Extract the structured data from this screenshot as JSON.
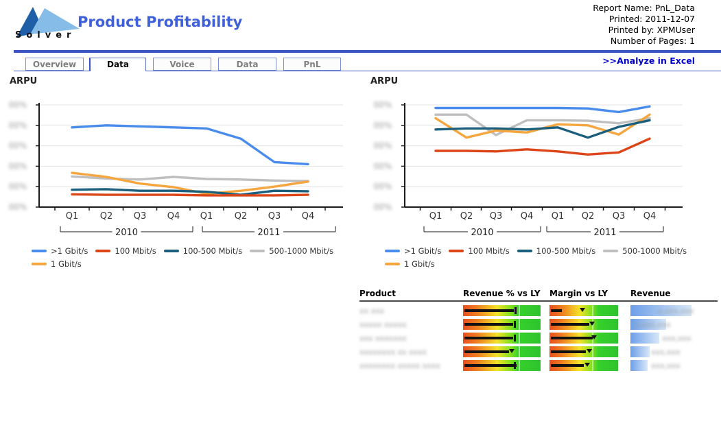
{
  "header": {
    "logo_text": "Solver",
    "title": "Product Profitability",
    "meta": [
      "Report Name: PnL_Data",
      "Printed: 2011-12-07",
      "Printed by: XPMUser",
      "Number of Pages: 1"
    ],
    "analyze_link": ">>Analyze in Excel"
  },
  "tabs": [
    {
      "label": "Overview",
      "active": false
    },
    {
      "label": "Data",
      "active": true
    },
    {
      "label": "Voice",
      "active": false
    },
    {
      "label": "Data",
      "active": false
    },
    {
      "label": "PnL",
      "active": false
    }
  ],
  "colors": {
    "accent_blue": "#3c53c4",
    "title_blue": "#4060d8",
    "link_blue": "#0000cc"
  },
  "chart_data": [
    {
      "type": "line",
      "title": "ARPU",
      "x": [
        "Q1",
        "Q2",
        "Q3",
        "Q4",
        "Q1",
        "Q2",
        "Q3",
        "Q4"
      ],
      "year_groups": [
        {
          "label": "2010",
          "from": 0,
          "to": 3
        },
        {
          "label": "2011",
          "from": 4,
          "to": 7
        }
      ],
      "ylim": [
        0,
        100
      ],
      "grid": true,
      "y_ticks_redacted": {
        "redacted": true,
        "placeholder": "00%",
        "count": 6
      },
      "legend_position": "bottom",
      "series": [
        {
          "name": ">1 Gbit/s",
          "color": "#4a8ceb",
          "values": [
            78,
            80,
            79,
            78,
            77,
            67,
            44,
            42
          ]
        },
        {
          "name": "100 Mbit/s",
          "color": "#dc4517",
          "values": [
            12.5,
            12,
            12,
            12,
            11.5,
            11.5,
            11.5,
            12
          ]
        },
        {
          "name": "100-500 Mbit/s",
          "color": "#1c5f7d",
          "values": [
            17,
            17.5,
            16,
            16,
            15,
            12,
            16,
            15.5
          ]
        },
        {
          "name": "500-1000 Mbit/s",
          "color": "#bfbfbf",
          "values": [
            30,
            28,
            27,
            29.5,
            27.5,
            27,
            26,
            25.5
          ]
        },
        {
          "name": "1 Gbit/s",
          "color": "#f6a63e",
          "values": [
            33.5,
            29.5,
            23,
            19.5,
            13,
            16,
            20,
            25
          ]
        }
      ]
    },
    {
      "type": "line",
      "title": "ARPU",
      "x": [
        "Q1",
        "Q2",
        "Q3",
        "Q4",
        "Q1",
        "Q2",
        "Q3",
        "Q4"
      ],
      "year_groups": [
        {
          "label": "2010",
          "from": 0,
          "to": 3
        },
        {
          "label": "2011",
          "from": 4,
          "to": 7
        }
      ],
      "ylim": [
        0,
        100
      ],
      "grid": true,
      "y_ticks_redacted": {
        "redacted": true,
        "placeholder": "00%",
        "count": 6
      },
      "legend_position": "bottom",
      "series": [
        {
          "name": ">1 Gbit/s",
          "color": "#4a8ceb",
          "values": [
            97,
            97,
            97,
            97,
            97,
            96.5,
            93,
            98.5
          ]
        },
        {
          "name": "100 Mbit/s",
          "color": "#dc4517",
          "values": [
            55,
            55,
            54.5,
            56.5,
            54.5,
            51.5,
            53.5,
            67
          ]
        },
        {
          "name": "100-500 Mbit/s",
          "color": "#1c5f7d",
          "values": [
            76,
            77,
            77,
            76,
            78,
            68,
            78.5,
            85
          ]
        },
        {
          "name": "500-1000 Mbit/s",
          "color": "#bfbfbf",
          "values": [
            90.5,
            90.5,
            70.5,
            85,
            85,
            84.5,
            82,
            87
          ]
        },
        {
          "name": "1 Gbit/s",
          "color": "#f6a63e",
          "values": [
            87,
            68,
            75,
            73,
            81,
            80,
            71,
            90.5
          ]
        }
      ]
    }
  ],
  "table": {
    "headers": [
      "Product",
      "Revenue % vs LY",
      "Margin vs LY",
      "Revenue"
    ],
    "bullet_divider_pct": {
      "revenue_vs_ly": 72,
      "margin_vs_ly": 62
    },
    "rows": [
      {
        "product_redacted": "xx xxx",
        "revenue_vs_ly": {
          "bar_pct": 67,
          "marker": "tick",
          "marker_pct": 67
        },
        "margin_vs_ly": {
          "bar_pct": 20,
          "marker": "triangle",
          "marker_pct": 48
        },
        "revenue": {
          "bar_pct": 94,
          "value_redacted": "x,xxx,xxx",
          "value_offset": 40
        }
      },
      {
        "product_redacted": "xxxxx xxxxx",
        "revenue_vs_ly": {
          "bar_pct": 66,
          "marker": "tick",
          "marker_pct": 66
        },
        "margin_vs_ly": {
          "bar_pct": 60,
          "marker": "triangle",
          "marker_pct": 62
        },
        "revenue": {
          "bar_pct": 55,
          "value_redacted": "x,xxx,xxx",
          "value_offset": 6
        }
      },
      {
        "product_redacted": "xxx xxxxxxx",
        "revenue_vs_ly": {
          "bar_pct": 66,
          "marker": "tick",
          "marker_pct": 66
        },
        "margin_vs_ly": {
          "bar_pct": 65,
          "marker": "triangle",
          "marker_pct": 65
        },
        "revenue": {
          "bar_pct": 44,
          "value_redacted": "xxx,xxx",
          "value_offset": 46
        }
      },
      {
        "product_redacted": "xxxxxxxx xx xxxx",
        "revenue_vs_ly": {
          "bar_pct": 61,
          "marker": "triangle",
          "marker_pct": 63
        },
        "margin_vs_ly": {
          "bar_pct": 55,
          "marker": "triangle",
          "marker_pct": 58
        },
        "revenue": {
          "bar_pct": 29,
          "value_redacted": "xxx,xxx",
          "value_offset": 30
        }
      },
      {
        "product_redacted": "xxxxxxxx xxxxx xxxx",
        "revenue_vs_ly": {
          "bar_pct": 71,
          "marker": "tick",
          "marker_pct": 66
        },
        "margin_vs_ly": {
          "bar_pct": 52,
          "marker": "triangle",
          "marker_pct": 55
        },
        "revenue": {
          "bar_pct": 26,
          "value_redacted": "xxx,xxx",
          "value_offset": 30
        }
      }
    ]
  }
}
